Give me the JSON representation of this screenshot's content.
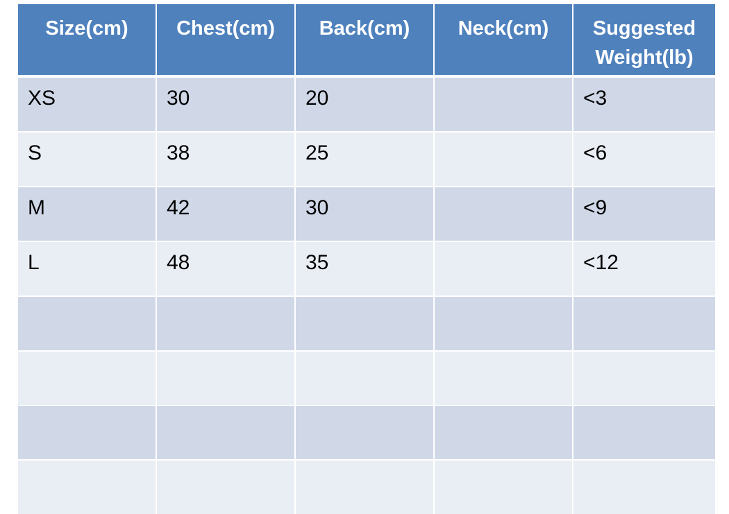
{
  "table": {
    "header": [
      "Size(cm)",
      "Chest(cm)",
      "Back(cm)",
      "Neck(cm)",
      "Suggested Weight(lb)"
    ],
    "rows": [
      [
        "XS",
        30,
        20,
        null,
        "<3"
      ],
      [
        "S",
        38,
        25,
        null,
        "<6"
      ],
      [
        "M",
        42,
        30,
        null,
        "<9"
      ],
      [
        "L",
        48,
        35,
        null,
        "<12"
      ],
      [
        null,
        null,
        null,
        null,
        null
      ],
      [
        null,
        null,
        null,
        null,
        null
      ],
      [
        null,
        null,
        null,
        null,
        null
      ],
      [
        null,
        null,
        null,
        null,
        null
      ]
    ]
  }
}
